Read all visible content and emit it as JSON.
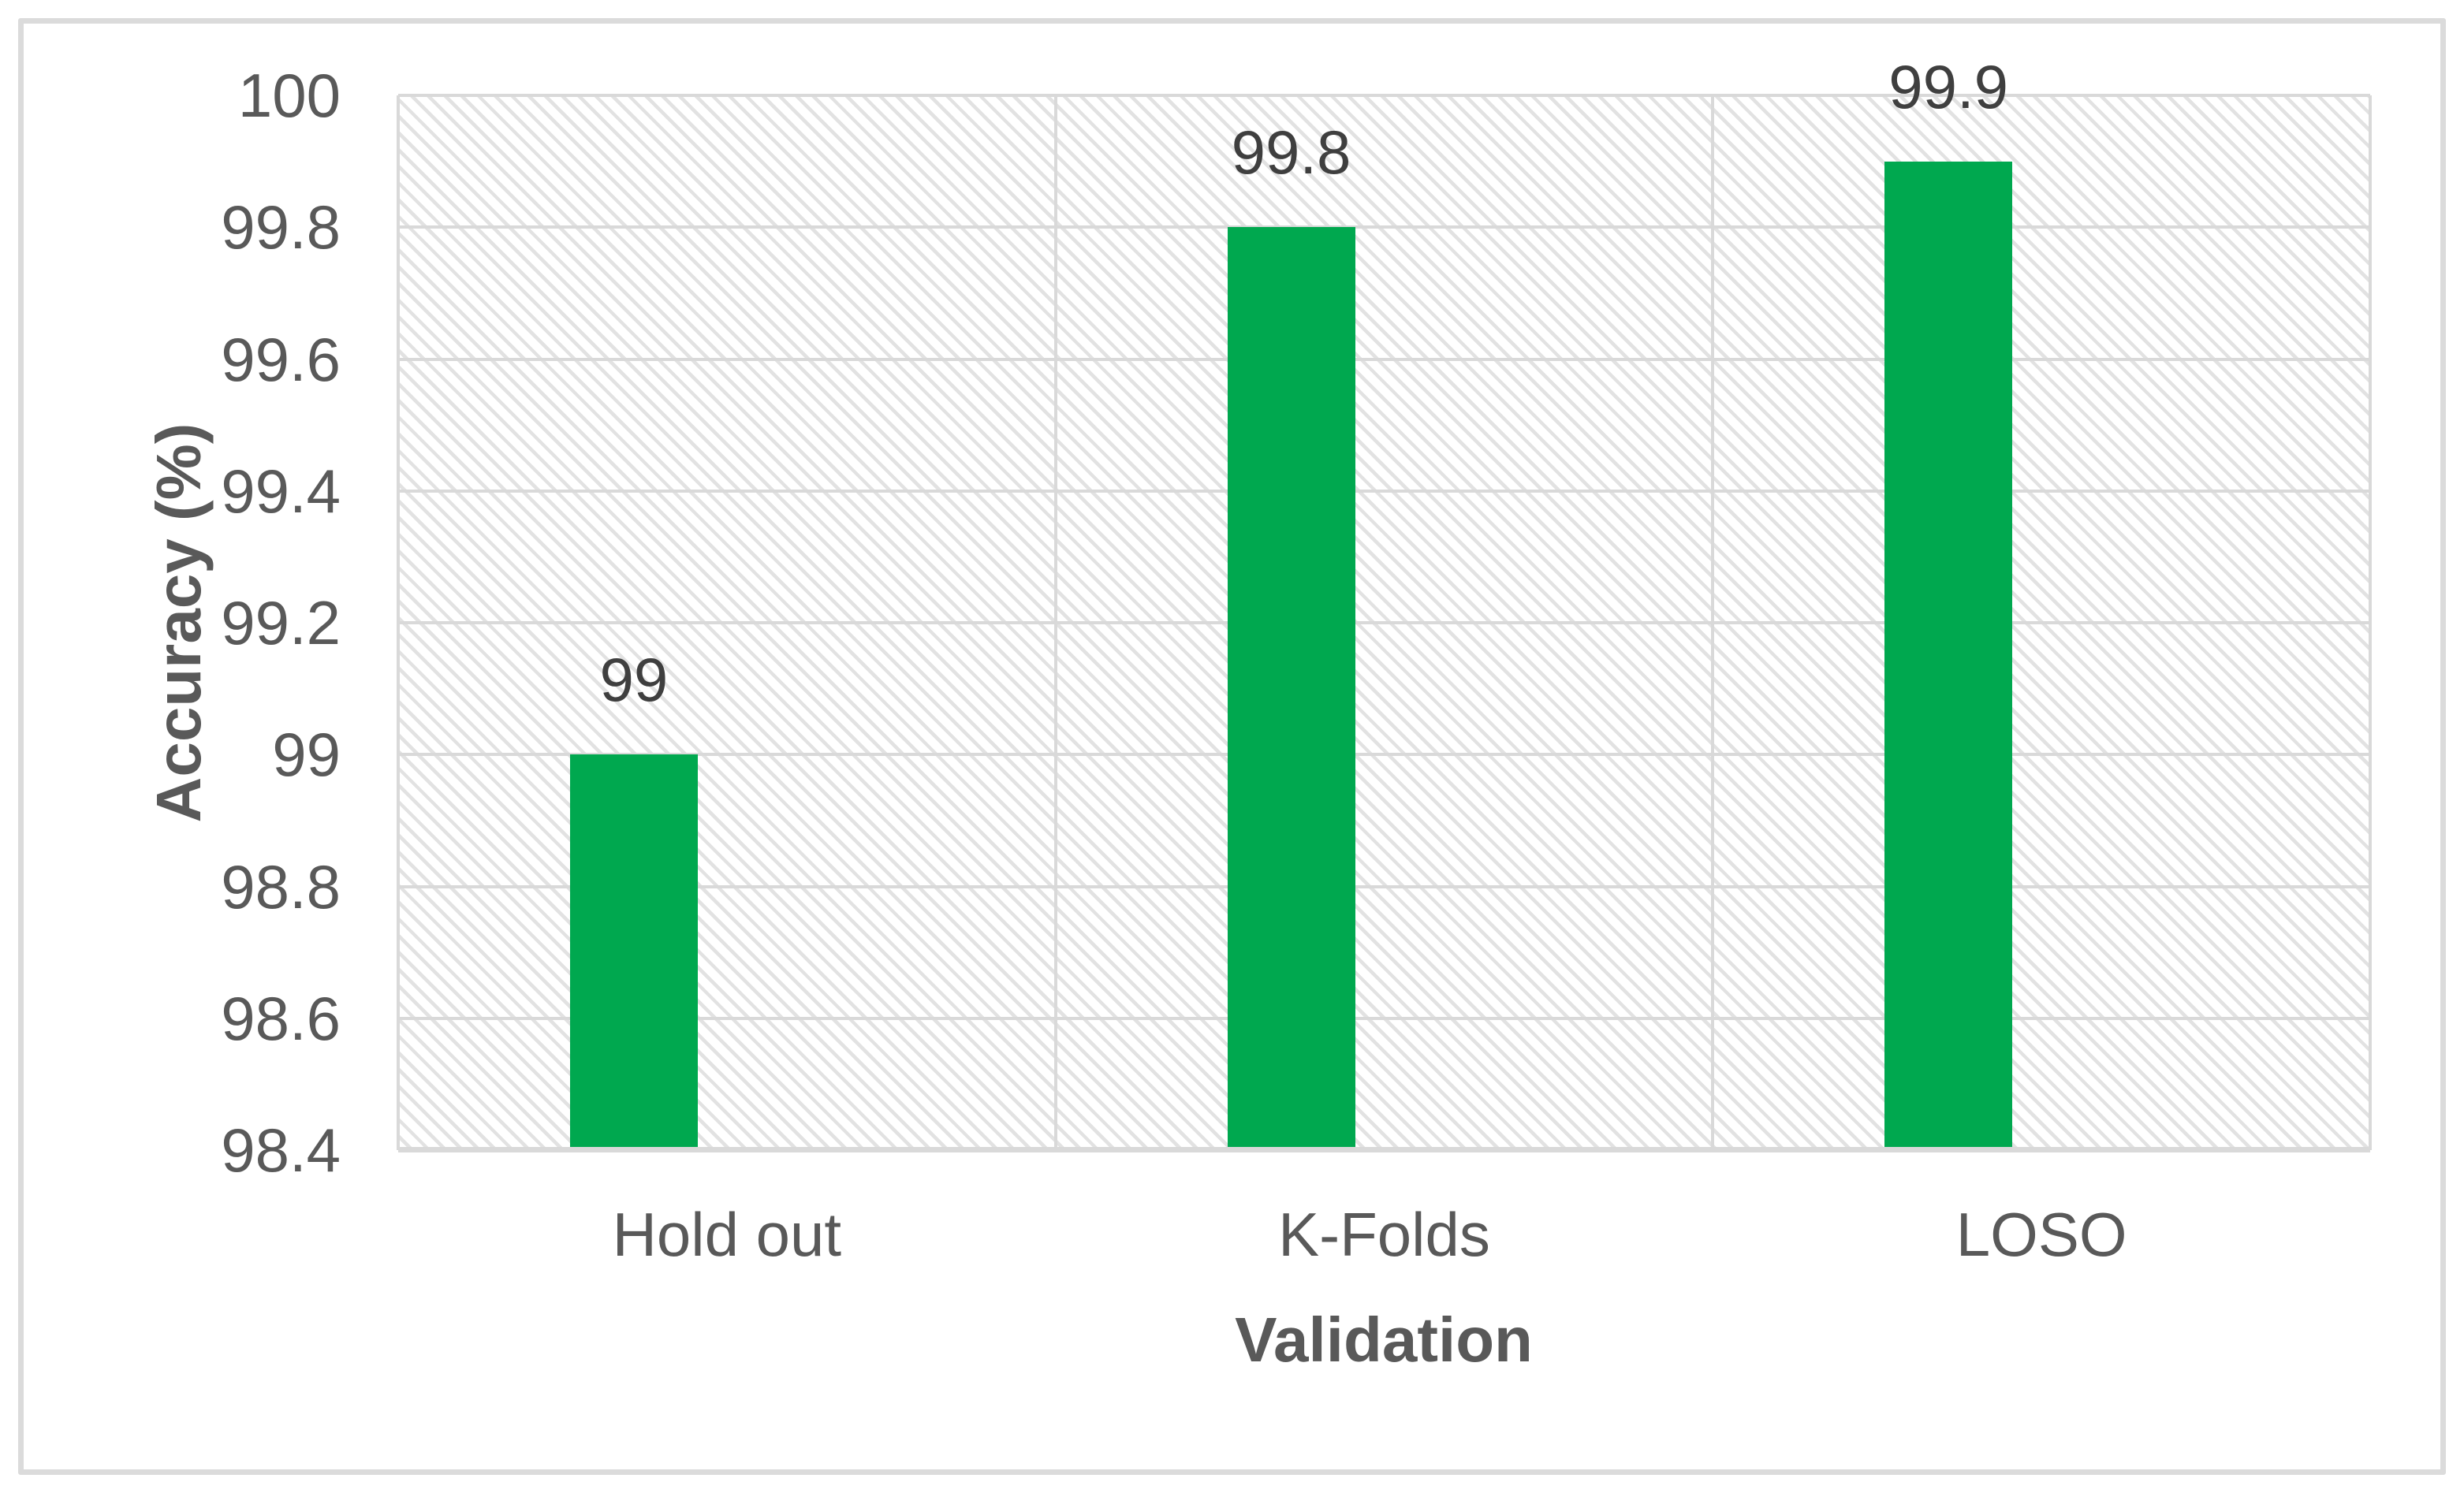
{
  "chart_data": {
    "type": "bar",
    "title": "",
    "categories": [
      "Hold out",
      "K-Folds",
      "LOSO"
    ],
    "values": [
      99,
      99.8,
      99.9
    ],
    "data_labels": [
      "99",
      "99.8",
      "99.9"
    ],
    "xlabel": "Validation",
    "ylabel": "Accuracy (%)",
    "ylim": [
      98.4,
      100
    ],
    "ytick_step": 0.2,
    "ytick_labels": [
      "100",
      "99.8",
      "99.6",
      "99.4",
      "99.2",
      "99",
      "98.8",
      "98.6",
      "98.4"
    ],
    "grid": true,
    "legend": false,
    "plot_pattern": "light-diagonal-hatch",
    "bar_color": "#00A84F",
    "gridline_color": "#D9D9D9",
    "axis_text_color": "#595959",
    "data_label_color": "#3F3F3F",
    "border_color": "#DBDBDB"
  }
}
